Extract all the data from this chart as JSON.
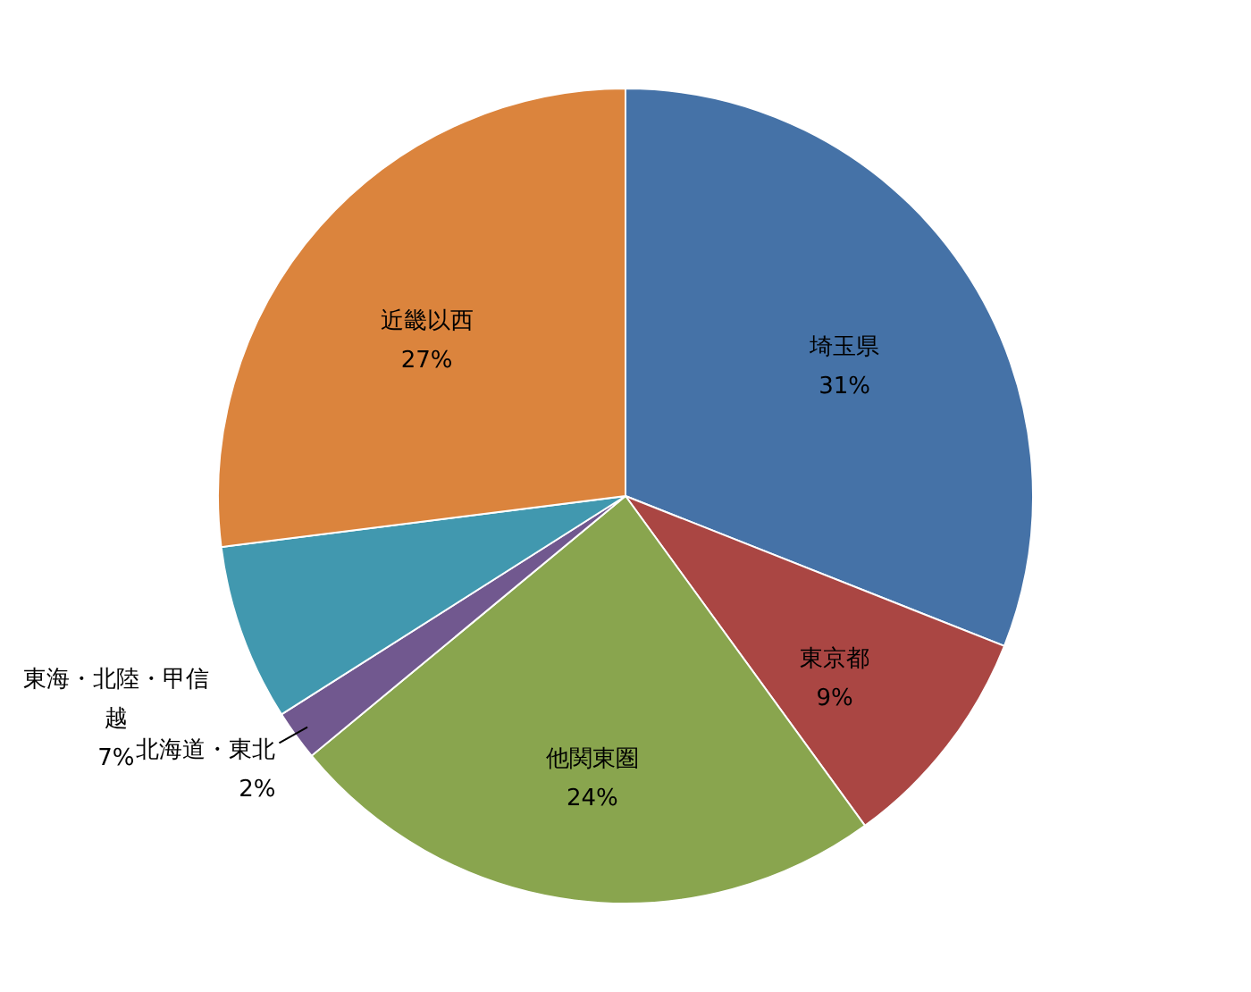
{
  "chart_data": {
    "type": "pie",
    "categories": [
      "埼玉県",
      "東京都",
      "他関東圏",
      "北海道・東北",
      "東海・北陸・甲信越",
      "近畿以西"
    ],
    "values": [
      31,
      9,
      24,
      2,
      7,
      27
    ],
    "value_labels": [
      "31%",
      "9%",
      "24%",
      "2%",
      "7%",
      "27%"
    ],
    "colors": [
      "#4572a7",
      "#aa4643",
      "#89a54e",
      "#71588f",
      "#4198af",
      "#db843d"
    ]
  }
}
